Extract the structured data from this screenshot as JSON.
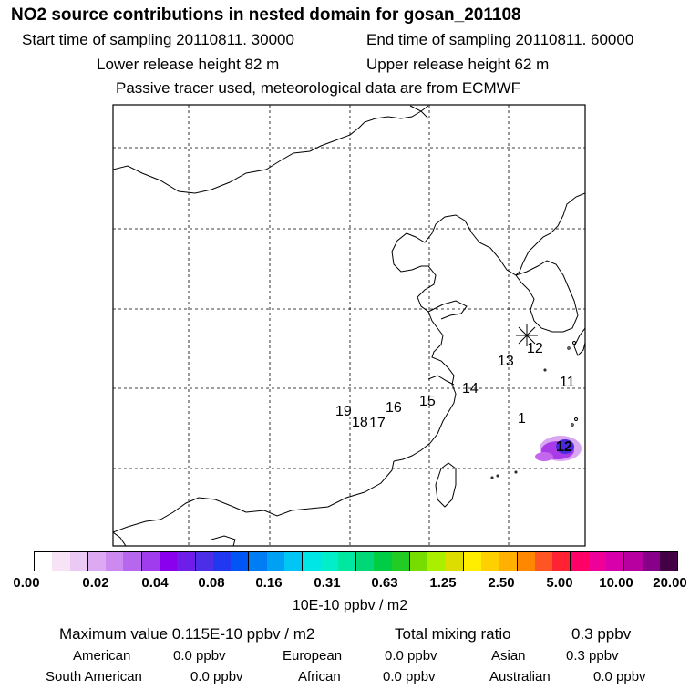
{
  "header": {
    "title": "NO2 source contributions in nested domain for gosan_201108",
    "start": "Start time of sampling 20110811. 30000",
    "end": "End time of sampling 20110811. 60000",
    "lower": "Lower release height   82 m",
    "upper": "Upper release height   62 m",
    "tracer": "Passive tracer used, meteorological data are from ECMWF"
  },
  "map": {
    "trajectory_labels": [
      "1",
      "11",
      "12",
      "13",
      "14",
      "15",
      "16",
      "17",
      "18",
      "19"
    ],
    "plume_label": "12"
  },
  "colorbar": {
    "colors": [
      "#ffffff",
      "#f6e4f6",
      "#eac9f4",
      "#dca9f2",
      "#cc8af0",
      "#b766ee",
      "#a03cee",
      "#8a00ee",
      "#6e1ee8",
      "#4c2ee6",
      "#2038f0",
      "#0055f5",
      "#007cf5",
      "#00a0f5",
      "#00c5f5",
      "#00e6e6",
      "#00efc8",
      "#00e8a0",
      "#00d878",
      "#00cc44",
      "#22cc22",
      "#77dd00",
      "#aaee00",
      "#dddd00",
      "#ffee00",
      "#ffd000",
      "#ffb000",
      "#ff8800",
      "#ff5522",
      "#ff2233",
      "#ff0066",
      "#ee0099",
      "#d800aa",
      "#b800a0",
      "#880088",
      "#440044"
    ],
    "ticks": [
      "0.00",
      "0.02",
      "0.04",
      "0.08",
      "0.16",
      "0.31",
      "0.63",
      "1.25",
      "2.50",
      "5.00",
      "10.00",
      "20.00"
    ],
    "unit": "10E-10 ppbv / m2"
  },
  "summary": {
    "max": "Maximum value  0.115E-10 ppbv / m2",
    "total_label": "Total mixing ratio",
    "total_value": "0.3 ppbv",
    "regions": [
      {
        "name": "American",
        "value": "0.0 ppbv"
      },
      {
        "name": "European",
        "value": "0.0 ppbv"
      },
      {
        "name": "Asian",
        "value": "0.3 ppbv"
      },
      {
        "name": "South American",
        "value": "0.0 ppbv"
      },
      {
        "name": "African",
        "value": "0.0 ppbv"
      },
      {
        "name": "Australian",
        "value": "0.0 ppbv"
      }
    ]
  }
}
